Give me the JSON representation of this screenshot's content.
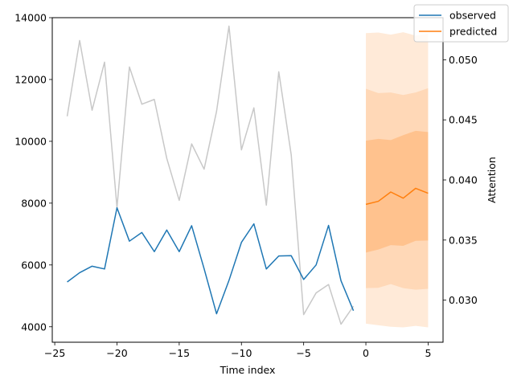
{
  "chart_data": {
    "type": "line",
    "xlabel": "Time index",
    "ylabel": "",
    "y2label": "Attention",
    "xlim": [
      -25.2,
      6.2
    ],
    "ylim": [
      3500,
      14000
    ],
    "y2lim": [
      0.0265,
      0.0535
    ],
    "xticks": [
      -25,
      -20,
      -15,
      -10,
      -5,
      0,
      5
    ],
    "yticks": [
      4000,
      6000,
      8000,
      10000,
      12000,
      14000
    ],
    "y2ticks": [
      0.03,
      0.035,
      0.04,
      0.045,
      0.05
    ],
    "legend": {
      "position": "top-right",
      "entries": [
        "observed",
        "predicted"
      ]
    },
    "colors": {
      "observed": "#1f77b4",
      "predicted": "#ff7f0e",
      "attention": "#c8c8c8",
      "band": "#ff7f0e"
    },
    "observed": {
      "name": "observed",
      "x": [
        -24,
        -23,
        -22,
        -21,
        -20,
        -19,
        -18,
        -17,
        -16,
        -15,
        -14,
        -13,
        -12,
        -11,
        -10,
        -9,
        -8,
        -7,
        -6,
        -5,
        -4,
        -3,
        -2,
        -1
      ],
      "y": [
        5450,
        5750,
        5960,
        5870,
        7850,
        6770,
        7050,
        6430,
        7130,
        6430,
        7270,
        5880,
        4420,
        5500,
        6730,
        7330,
        5870,
        6290,
        6300,
        5530,
        6000,
        7280,
        5490,
        4520
      ]
    },
    "attention": {
      "name": "attention",
      "x": [
        -24,
        -23,
        -22,
        -21,
        -20,
        -19,
        -18,
        -17,
        -16,
        -15,
        -14,
        -13,
        -12,
        -11,
        -10,
        -9,
        -8,
        -7,
        -6,
        -5,
        -4,
        -3,
        -2,
        -1
      ],
      "y": [
        0.0453,
        0.0516,
        0.0458,
        0.0498,
        0.0377,
        0.0494,
        0.0463,
        0.0467,
        0.0418,
        0.0383,
        0.043,
        0.0409,
        0.0457,
        0.0528,
        0.0425,
        0.046,
        0.0379,
        0.049,
        0.0421,
        0.0288,
        0.0306,
        0.0313,
        0.028,
        0.0295
      ]
    },
    "predicted": {
      "name": "predicted",
      "x": [
        0,
        1,
        2,
        3,
        4,
        5
      ],
      "y": [
        7960,
        8060,
        8360,
        8160,
        8480,
        8320
      ]
    },
    "bands": [
      {
        "lower": [
          4100,
          4050,
          4000,
          3980,
          4030,
          3980
        ],
        "upper": [
          13500,
          13520,
          13450,
          13530,
          13420,
          13480
        ],
        "opacity": 0.16
      },
      {
        "lower": [
          5250,
          5260,
          5380,
          5250,
          5200,
          5230
        ],
        "upper": [
          11700,
          11560,
          11580,
          11500,
          11580,
          11720
        ],
        "opacity": 0.16
      },
      {
        "lower": [
          6400,
          6500,
          6640,
          6620,
          6780,
          6790
        ],
        "upper": [
          10020,
          10080,
          10040,
          10200,
          10340,
          10300
        ],
        "opacity": 0.24
      }
    ]
  }
}
